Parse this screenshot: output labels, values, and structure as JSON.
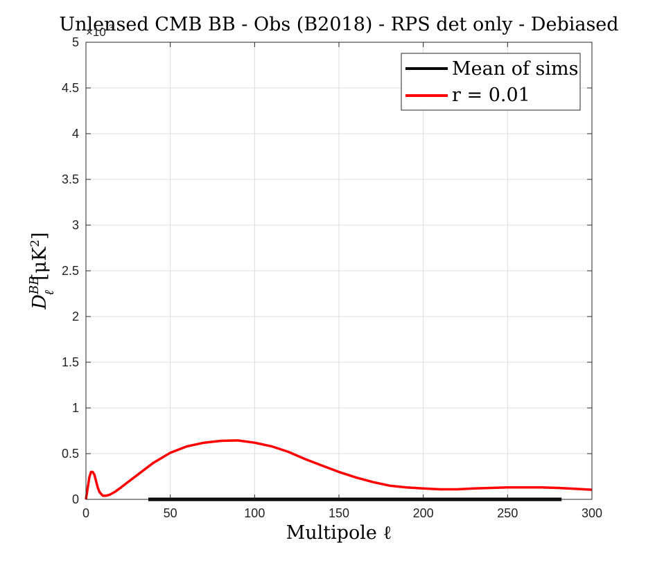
{
  "chart_data": {
    "type": "line",
    "title": "Unlensed CMB BB - Obs (B2018) - RPS det only - Debiased",
    "xlabel": "Multipole ℓ",
    "ylabel": {
      "base": "D",
      "superscript": "BB",
      "subscript": "ℓ",
      "unit": "[μK",
      "unit_exp": "2",
      "unit_close": "]"
    },
    "xlim": [
      0,
      300
    ],
    "ylim": [
      0,
      5
    ],
    "y_exponent": "×10",
    "y_exponent_power": "-3",
    "xticks": [
      0,
      50,
      100,
      150,
      200,
      250,
      300
    ],
    "yticks": [
      0,
      0.5,
      1,
      1.5,
      2,
      2.5,
      3,
      3.5,
      4,
      4.5,
      5
    ],
    "xtick_labels": [
      "0",
      "50",
      "100",
      "150",
      "200",
      "250",
      "300"
    ],
    "ytick_labels": [
      "0",
      "0.5",
      "1",
      "1.5",
      "2",
      "2.5",
      "3",
      "3.5",
      "4",
      "4.5",
      "5"
    ],
    "grid": true,
    "legend_position": "top-right",
    "series": [
      {
        "name": "Mean of sims",
        "color": "#000000",
        "x": [
          37,
          282
        ],
        "y": [
          0,
          0
        ]
      },
      {
        "name": "r = 0.01",
        "color": "#ff0000",
        "x": [
          0,
          1,
          2,
          3,
          4,
          5,
          6,
          7,
          8,
          10,
          12,
          14,
          17,
          20,
          25,
          30,
          40,
          50,
          60,
          70,
          80,
          90,
          100,
          110,
          120,
          130,
          140,
          150,
          160,
          170,
          180,
          190,
          200,
          210,
          220,
          230,
          240,
          250,
          260,
          270,
          280,
          290,
          300
        ],
        "y": [
          0,
          0.12,
          0.24,
          0.3,
          0.3,
          0.27,
          0.2,
          0.13,
          0.08,
          0.04,
          0.04,
          0.05,
          0.08,
          0.12,
          0.19,
          0.26,
          0.4,
          0.51,
          0.58,
          0.62,
          0.64,
          0.645,
          0.62,
          0.58,
          0.52,
          0.44,
          0.37,
          0.3,
          0.24,
          0.19,
          0.15,
          0.13,
          0.12,
          0.11,
          0.11,
          0.12,
          0.125,
          0.13,
          0.13,
          0.13,
          0.125,
          0.115,
          0.105
        ]
      }
    ]
  }
}
